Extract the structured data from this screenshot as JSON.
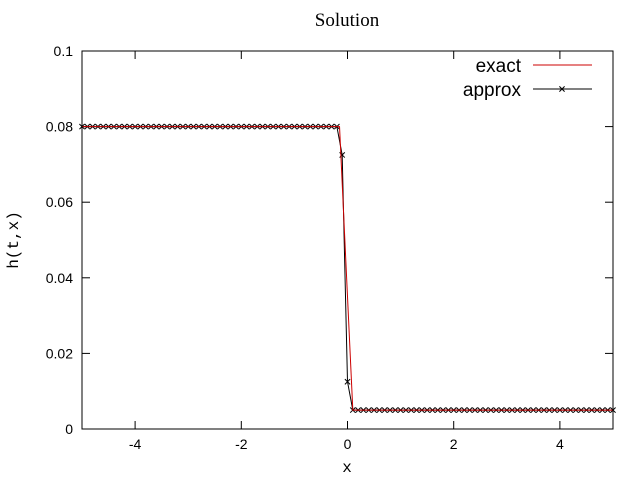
{
  "chart_data": {
    "type": "line",
    "title": "Solution",
    "xlabel": "x",
    "ylabel": "h(t,x)",
    "xlim": [
      -5,
      5
    ],
    "ylim": [
      0,
      0.1
    ],
    "xticks": [
      -4,
      -2,
      0,
      2,
      4
    ],
    "xtick_labels": [
      "-4",
      "-2",
      "0",
      "2",
      "4"
    ],
    "yticks": [
      0,
      0.02,
      0.04,
      0.06,
      0.08,
      0.1
    ],
    "ytick_labels": [
      "0",
      "0.02",
      "0.04",
      "0.06",
      "0.08",
      "0.1"
    ],
    "grid": false,
    "legend_position": "top-right",
    "series": [
      {
        "name": "exact",
        "color": "#cc0000",
        "marker": "none",
        "x": [
          -5,
          -0.15,
          0.1,
          5
        ],
        "y": [
          0.08,
          0.08,
          0.005,
          0.005
        ]
      },
      {
        "name": "approx",
        "color": "#000000",
        "marker": "x",
        "x": [
          -5.0,
          -4.9,
          -4.8,
          -4.7,
          -4.6,
          -4.5,
          -4.4,
          -4.3,
          -4.2,
          -4.1,
          -4.0,
          -3.9,
          -3.8,
          -3.7,
          -3.6,
          -3.5,
          -3.4,
          -3.3,
          -3.2,
          -3.1,
          -3.0,
          -2.9,
          -2.8,
          -2.7,
          -2.6,
          -2.5,
          -2.4,
          -2.3,
          -2.2,
          -2.1,
          -2.0,
          -1.9,
          -1.8,
          -1.7,
          -1.6,
          -1.5,
          -1.4,
          -1.3,
          -1.2,
          -1.1,
          -1.0,
          -0.9,
          -0.8,
          -0.7,
          -0.6,
          -0.5,
          -0.4,
          -0.3,
          -0.2,
          -0.1,
          0.0,
          0.1,
          0.2,
          0.3,
          0.4,
          0.5,
          0.6,
          0.7,
          0.8,
          0.9,
          1.0,
          1.1,
          1.2,
          1.3,
          1.4,
          1.5,
          1.6,
          1.7,
          1.8,
          1.9,
          2.0,
          2.1,
          2.2,
          2.3,
          2.4,
          2.5,
          2.6,
          2.7,
          2.8,
          2.9,
          3.0,
          3.1,
          3.2,
          3.3,
          3.4,
          3.5,
          3.6,
          3.7,
          3.8,
          3.9,
          4.0,
          4.1,
          4.2,
          4.3,
          4.4,
          4.5,
          4.6,
          4.7,
          4.8,
          4.9,
          5.0
        ],
        "y": [
          0.08,
          0.08,
          0.08,
          0.08,
          0.08,
          0.08,
          0.08,
          0.08,
          0.08,
          0.08,
          0.08,
          0.08,
          0.08,
          0.08,
          0.08,
          0.08,
          0.08,
          0.08,
          0.08,
          0.08,
          0.08,
          0.08,
          0.08,
          0.08,
          0.08,
          0.08,
          0.08,
          0.08,
          0.08,
          0.08,
          0.08,
          0.08,
          0.08,
          0.08,
          0.08,
          0.08,
          0.08,
          0.08,
          0.08,
          0.08,
          0.08,
          0.08,
          0.08,
          0.08,
          0.08,
          0.08,
          0.08,
          0.08,
          0.08,
          0.0725,
          0.0125,
          0.005,
          0.005,
          0.005,
          0.005,
          0.005,
          0.005,
          0.005,
          0.005,
          0.005,
          0.005,
          0.005,
          0.005,
          0.005,
          0.005,
          0.005,
          0.005,
          0.005,
          0.005,
          0.005,
          0.005,
          0.005,
          0.005,
          0.005,
          0.005,
          0.005,
          0.005,
          0.005,
          0.005,
          0.005,
          0.005,
          0.005,
          0.005,
          0.005,
          0.005,
          0.005,
          0.005,
          0.005,
          0.005,
          0.005,
          0.005,
          0.005,
          0.005,
          0.005,
          0.005,
          0.005,
          0.005,
          0.005,
          0.005,
          0.005,
          0.005
        ]
      }
    ]
  }
}
